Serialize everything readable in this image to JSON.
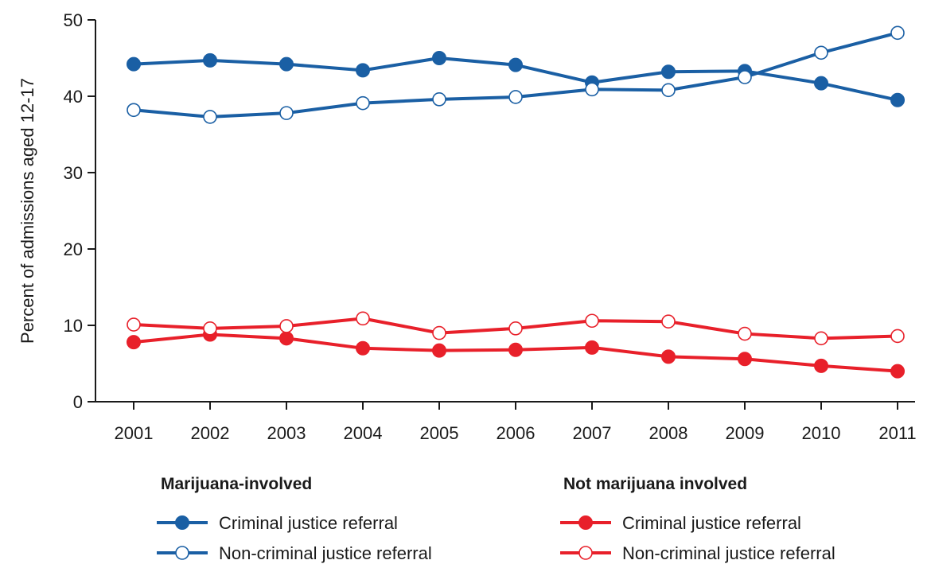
{
  "chart_data": {
    "type": "line",
    "ylabel": "Percent of admissions aged 12-17",
    "ylim": [
      0,
      50
    ],
    "yticks": [
      0,
      10,
      20,
      30,
      40,
      50
    ],
    "categories": [
      "2001",
      "2002",
      "2003",
      "2004",
      "2005",
      "2006",
      "2007",
      "2008",
      "2009",
      "2010",
      "2011"
    ],
    "grid": false,
    "legend_placement": "bottom",
    "colors": {
      "blue": "#1a5fa4",
      "red": "#e8202a",
      "axis": "#1a1a1a"
    },
    "groups": [
      {
        "title": "Marijuana-involved",
        "color": "#1a5fa4"
      },
      {
        "title": "Not marijuana involved",
        "color": "#e8202a"
      }
    ],
    "series": [
      {
        "name": "Criminal justice referral",
        "group": 0,
        "marker": "filled",
        "color": "#1a5fa4",
        "values": [
          44.2,
          44.7,
          44.2,
          43.4,
          45.0,
          44.1,
          41.8,
          43.2,
          43.3,
          41.7,
          39.5
        ]
      },
      {
        "name": "Non-criminal justice referral",
        "group": 0,
        "marker": "open",
        "color": "#1a5fa4",
        "values": [
          38.2,
          37.3,
          37.8,
          39.1,
          39.6,
          39.9,
          40.9,
          40.8,
          42.5,
          45.7,
          48.3
        ]
      },
      {
        "name": "Criminal justice referral",
        "group": 1,
        "marker": "filled",
        "color": "#e8202a",
        "values": [
          7.8,
          8.8,
          8.3,
          7.0,
          6.7,
          6.8,
          7.1,
          5.9,
          5.6,
          4.7,
          4.0
        ]
      },
      {
        "name": "Non-criminal justice referral",
        "group": 1,
        "marker": "open",
        "color": "#e8202a",
        "values": [
          10.1,
          9.6,
          9.9,
          10.9,
          9.0,
          9.6,
          10.6,
          10.5,
          8.9,
          8.3,
          8.6
        ]
      }
    ]
  }
}
